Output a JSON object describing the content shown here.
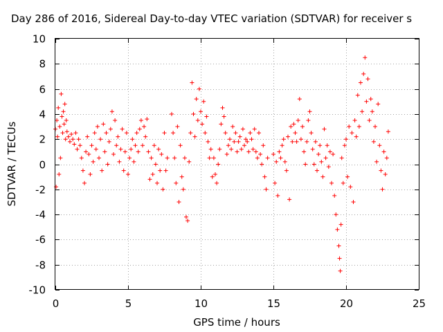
{
  "chart_data": {
    "type": "scatter",
    "title": "Day 286 of 2016, Sidereal Day-to-day VTEC variation (SDTVAR) for receiver s",
    "xlabel": "GPS time / hours",
    "ylabel": "SDTVAR / TECUs",
    "xlim": [
      0,
      25
    ],
    "ylim": [
      -10,
      10
    ],
    "xticks": [
      0,
      5,
      10,
      15,
      20,
      25
    ],
    "xtick_labels": [
      "0",
      "5",
      "10",
      "15",
      "20",
      "25"
    ],
    "yticks": [
      -10,
      -8,
      -6,
      -4,
      -2,
      0,
      2,
      4,
      6,
      8,
      10
    ],
    "ytick_labels": [
      "-10",
      "-8",
      "-6",
      "-4",
      "-2",
      "0",
      "2",
      "4",
      "6",
      "8",
      "10"
    ],
    "grid": true,
    "marker": "plus",
    "color": "#ff0000",
    "series": [
      {
        "name": "SDTVAR",
        "points": [
          [
            0.0,
            2.8
          ],
          [
            0.05,
            -1.8
          ],
          [
            0.1,
            3.5
          ],
          [
            0.15,
            2.2
          ],
          [
            0.2,
            4.5
          ],
          [
            0.25,
            -0.8
          ],
          [
            0.3,
            3.0
          ],
          [
            0.35,
            0.5
          ],
          [
            0.4,
            5.6
          ],
          [
            0.45,
            3.8
          ],
          [
            0.5,
            2.5
          ],
          [
            0.55,
            4.2
          ],
          [
            0.6,
            3.2
          ],
          [
            0.65,
            4.8
          ],
          [
            0.7,
            2.0
          ],
          [
            0.75,
            3.5
          ],
          [
            0.8,
            2.6
          ],
          [
            0.9,
            2.2
          ],
          [
            1.0,
            1.8
          ],
          [
            1.1,
            2.4
          ],
          [
            1.2,
            2.0
          ],
          [
            1.3,
            1.6
          ],
          [
            1.4,
            2.5
          ],
          [
            1.5,
            1.2
          ],
          [
            1.6,
            2.0
          ],
          [
            1.7,
            1.5
          ],
          [
            1.8,
            0.5
          ],
          [
            1.9,
            -0.5
          ],
          [
            2.0,
            -1.5
          ],
          [
            2.1,
            1.0
          ],
          [
            2.2,
            2.2
          ],
          [
            2.3,
            0.8
          ],
          [
            2.4,
            -0.8
          ],
          [
            2.5,
            1.5
          ],
          [
            2.6,
            0.2
          ],
          [
            2.7,
            2.5
          ],
          [
            2.8,
            1.2
          ],
          [
            2.9,
            3.0
          ],
          [
            3.0,
            0.5
          ],
          [
            3.1,
            2.0
          ],
          [
            3.2,
            -0.5
          ],
          [
            3.3,
            3.2
          ],
          [
            3.4,
            1.0
          ],
          [
            3.5,
            2.5
          ],
          [
            3.6,
            0.0
          ],
          [
            3.7,
            1.8
          ],
          [
            3.8,
            2.8
          ],
          [
            3.9,
            4.2
          ],
          [
            4.0,
            0.8
          ],
          [
            4.1,
            3.5
          ],
          [
            4.2,
            1.5
          ],
          [
            4.3,
            2.2
          ],
          [
            4.4,
            0.2
          ],
          [
            4.5,
            1.2
          ],
          [
            4.6,
            2.8
          ],
          [
            4.7,
            -0.5
          ],
          [
            4.8,
            1.0
          ],
          [
            4.9,
            2.5
          ],
          [
            5.0,
            -0.8
          ],
          [
            5.1,
            0.5
          ],
          [
            5.2,
            1.2
          ],
          [
            5.3,
            2.0
          ],
          [
            5.4,
            0.2
          ],
          [
            5.5,
            1.5
          ],
          [
            5.6,
            2.5
          ],
          [
            5.7,
            1.0
          ],
          [
            5.8,
            2.8
          ],
          [
            5.9,
            3.5
          ],
          [
            6.0,
            1.5
          ],
          [
            6.1,
            3.0
          ],
          [
            6.2,
            2.2
          ],
          [
            6.3,
            3.6
          ],
          [
            6.4,
            1.0
          ],
          [
            6.5,
            -1.2
          ],
          [
            6.6,
            0.5
          ],
          [
            6.7,
            -0.8
          ],
          [
            6.8,
            1.5
          ],
          [
            6.9,
            0.0
          ],
          [
            7.0,
            -1.5
          ],
          [
            7.1,
            1.2
          ],
          [
            7.2,
            -0.5
          ],
          [
            7.3,
            0.8
          ],
          [
            7.4,
            -2.0
          ],
          [
            7.5,
            2.5
          ],
          [
            7.6,
            -0.5
          ],
          [
            7.7,
            0.5
          ],
          [
            8.0,
            4.0
          ],
          [
            8.1,
            2.5
          ],
          [
            8.2,
            0.5
          ],
          [
            8.3,
            -1.5
          ],
          [
            8.4,
            3.0
          ],
          [
            8.5,
            -3.0
          ],
          [
            8.6,
            1.5
          ],
          [
            8.7,
            -1.0
          ],
          [
            8.8,
            -2.0
          ],
          [
            8.9,
            0.5
          ],
          [
            9.0,
            -4.2
          ],
          [
            9.1,
            -4.5
          ],
          [
            9.2,
            0.2
          ],
          [
            9.3,
            2.5
          ],
          [
            9.4,
            6.5
          ],
          [
            9.5,
            4.0
          ],
          [
            9.6,
            2.2
          ],
          [
            9.7,
            5.2
          ],
          [
            9.8,
            3.5
          ],
          [
            9.9,
            6.0
          ],
          [
            10.0,
            4.2
          ],
          [
            10.1,
            3.2
          ],
          [
            10.2,
            5.0
          ],
          [
            10.3,
            2.5
          ],
          [
            10.4,
            3.8
          ],
          [
            10.5,
            1.8
          ],
          [
            10.6,
            0.5
          ],
          [
            10.7,
            1.2
          ],
          [
            10.8,
            -1.0
          ],
          [
            10.9,
            0.5
          ],
          [
            11.0,
            -0.8
          ],
          [
            11.1,
            -1.5
          ],
          [
            11.2,
            0.0
          ],
          [
            11.3,
            1.2
          ],
          [
            11.4,
            3.2
          ],
          [
            11.5,
            4.5
          ],
          [
            11.6,
            3.8
          ],
          [
            11.7,
            2.5
          ],
          [
            11.8,
            0.8
          ],
          [
            11.9,
            1.5
          ],
          [
            12.0,
            2.0
          ],
          [
            12.1,
            1.2
          ],
          [
            12.2,
            3.0
          ],
          [
            12.3,
            1.8
          ],
          [
            12.4,
            2.5
          ],
          [
            12.5,
            1.0
          ],
          [
            12.6,
            1.8
          ],
          [
            12.7,
            2.2
          ],
          [
            12.8,
            1.2
          ],
          [
            12.9,
            2.8
          ],
          [
            13.0,
            1.5
          ],
          [
            13.1,
            2.0
          ],
          [
            13.2,
            1.8
          ],
          [
            13.3,
            1.0
          ],
          [
            13.4,
            2.5
          ],
          [
            13.5,
            2.0
          ],
          [
            13.6,
            1.2
          ],
          [
            13.7,
            2.8
          ],
          [
            13.8,
            1.0
          ],
          [
            13.9,
            0.5
          ],
          [
            14.0,
            2.5
          ],
          [
            14.1,
            0.8
          ],
          [
            14.2,
            0.0
          ],
          [
            14.3,
            1.5
          ],
          [
            14.4,
            -1.0
          ],
          [
            14.5,
            -2.0
          ],
          [
            14.6,
            0.5
          ],
          [
            15.0,
            0.8
          ],
          [
            15.1,
            -1.5
          ],
          [
            15.2,
            0.2
          ],
          [
            15.3,
            -2.5
          ],
          [
            15.4,
            1.0
          ],
          [
            15.5,
            0.5
          ],
          [
            15.6,
            1.5
          ],
          [
            15.7,
            2.0
          ],
          [
            15.8,
            0.2
          ],
          [
            15.9,
            -0.5
          ],
          [
            16.0,
            2.2
          ],
          [
            16.1,
            -2.8
          ],
          [
            16.2,
            3.0
          ],
          [
            16.3,
            1.8
          ],
          [
            16.4,
            3.2
          ],
          [
            16.5,
            2.5
          ],
          [
            16.6,
            1.8
          ],
          [
            16.7,
            3.5
          ],
          [
            16.8,
            5.2
          ],
          [
            16.9,
            2.0
          ],
          [
            17.0,
            3.0
          ],
          [
            17.1,
            1.0
          ],
          [
            17.2,
            0.0
          ],
          [
            17.3,
            1.8
          ],
          [
            17.4,
            3.5
          ],
          [
            17.5,
            4.2
          ],
          [
            17.6,
            2.5
          ],
          [
            17.7,
            1.2
          ],
          [
            17.8,
            0.0
          ],
          [
            17.9,
            1.8
          ],
          [
            18.0,
            -0.5
          ],
          [
            18.1,
            0.8
          ],
          [
            18.2,
            1.5
          ],
          [
            18.3,
            0.2
          ],
          [
            18.4,
            -1.0
          ],
          [
            18.5,
            2.8
          ],
          [
            18.6,
            0.5
          ],
          [
            18.7,
            1.5
          ],
          [
            18.8,
            -0.2
          ],
          [
            18.9,
            1.0
          ],
          [
            19.0,
            -1.5
          ],
          [
            19.1,
            0.8
          ],
          [
            19.2,
            -2.5
          ],
          [
            19.3,
            -4.0
          ],
          [
            19.4,
            -5.2
          ],
          [
            19.5,
            -6.5
          ],
          [
            19.55,
            -7.5
          ],
          [
            19.6,
            -8.5
          ],
          [
            19.65,
            -4.8
          ],
          [
            19.7,
            0.5
          ],
          [
            19.8,
            -1.5
          ],
          [
            19.9,
            1.5
          ],
          [
            20.0,
            2.0
          ],
          [
            20.1,
            -1.0
          ],
          [
            20.2,
            3.0
          ],
          [
            20.3,
            -1.8
          ],
          [
            20.4,
            2.5
          ],
          [
            20.5,
            -3.0
          ],
          [
            20.6,
            3.5
          ],
          [
            20.7,
            2.2
          ],
          [
            20.8,
            5.5
          ],
          [
            20.9,
            3.0
          ],
          [
            21.0,
            6.5
          ],
          [
            21.1,
            4.2
          ],
          [
            21.2,
            7.2
          ],
          [
            21.3,
            8.5
          ],
          [
            21.4,
            5.0
          ],
          [
            21.5,
            6.8
          ],
          [
            21.6,
            3.5
          ],
          [
            21.7,
            5.2
          ],
          [
            21.8,
            4.2
          ],
          [
            21.9,
            1.8
          ],
          [
            22.0,
            3.0
          ],
          [
            22.1,
            0.2
          ],
          [
            22.2,
            4.8
          ],
          [
            22.3,
            1.5
          ],
          [
            22.4,
            -0.5
          ],
          [
            22.5,
            -2.0
          ],
          [
            22.6,
            1.0
          ],
          [
            22.7,
            -0.8
          ],
          [
            22.8,
            0.5
          ],
          [
            22.9,
            2.6
          ]
        ]
      }
    ]
  }
}
